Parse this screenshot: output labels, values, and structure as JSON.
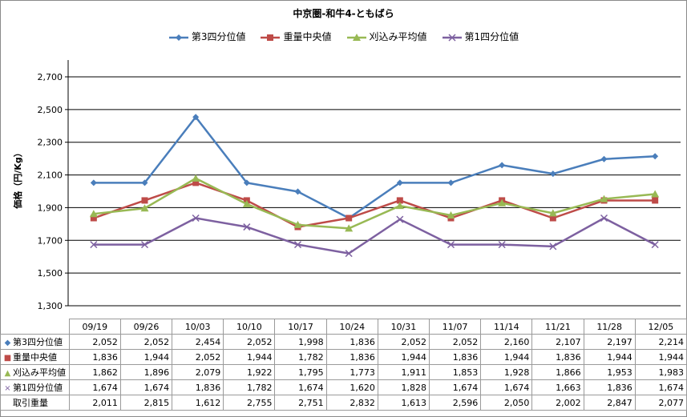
{
  "chart_data": {
    "type": "line",
    "title": "中京圏-和牛4-ともばら",
    "ylabel": "価格（円/Kg）",
    "xlabel": "",
    "categories": [
      "09/19",
      "09/26",
      "10/03",
      "10/10",
      "10/17",
      "10/24",
      "10/31",
      "11/07",
      "11/14",
      "11/21",
      "11/28",
      "12/05"
    ],
    "ylim": [
      1300,
      2700
    ],
    "yticks": [
      "1,300",
      "1,500",
      "1,700",
      "1,900",
      "2,100",
      "2,300",
      "2,500",
      "2,700"
    ],
    "ytick_values": [
      1300,
      1500,
      1700,
      1900,
      2100,
      2300,
      2500,
      2700
    ],
    "grid": true,
    "legend_position": "top",
    "series": [
      {
        "name": "第3四分位値",
        "color": "#4a7ebb",
        "marker": "diamond",
        "values": [
          2052,
          2052,
          2454,
          2052,
          1998,
          1836,
          2052,
          2052,
          2160,
          2107,
          2197,
          2214
        ]
      },
      {
        "name": "重量中央値",
        "color": "#be4b48",
        "marker": "square",
        "values": [
          1836,
          1944,
          2052,
          1944,
          1782,
          1836,
          1944,
          1836,
          1944,
          1836,
          1944,
          1944
        ]
      },
      {
        "name": "刈込み平均値",
        "color": "#98b954",
        "marker": "triangle",
        "values": [
          1862,
          1896,
          2079,
          1922,
          1795,
          1773,
          1911,
          1853,
          1928,
          1866,
          1953,
          1983
        ]
      },
      {
        "name": "第1四分位値",
        "color": "#7d60a0",
        "marker": "x",
        "values": [
          1674,
          1674,
          1836,
          1782,
          1674,
          1620,
          1828,
          1674,
          1674,
          1663,
          1836,
          1674
        ]
      }
    ],
    "table": {
      "row_labels": [
        "第3四分位値",
        "重量中央値",
        "刈込み平均値",
        "第1四分位値",
        "取引重量"
      ],
      "rows": [
        [
          "2,052",
          "2,052",
          "2,454",
          "2,052",
          "1,998",
          "1,836",
          "2,052",
          "2,052",
          "2,160",
          "2,107",
          "2,197",
          "2,214"
        ],
        [
          "1,836",
          "1,944",
          "2,052",
          "1,944",
          "1,782",
          "1,836",
          "1,944",
          "1,836",
          "1,944",
          "1,836",
          "1,944",
          "1,944"
        ],
        [
          "1,862",
          "1,896",
          "2,079",
          "1,922",
          "1,795",
          "1,773",
          "1,911",
          "1,853",
          "1,928",
          "1,866",
          "1,953",
          "1,983"
        ],
        [
          "1,674",
          "1,674",
          "1,836",
          "1,782",
          "1,674",
          "1,620",
          "1,828",
          "1,674",
          "1,674",
          "1,663",
          "1,836",
          "1,674"
        ],
        [
          "2,011",
          "2,815",
          "1,612",
          "2,755",
          "2,751",
          "2,832",
          "1,613",
          "2,596",
          "2,050",
          "2,002",
          "2,847",
          "2,077"
        ]
      ]
    }
  }
}
